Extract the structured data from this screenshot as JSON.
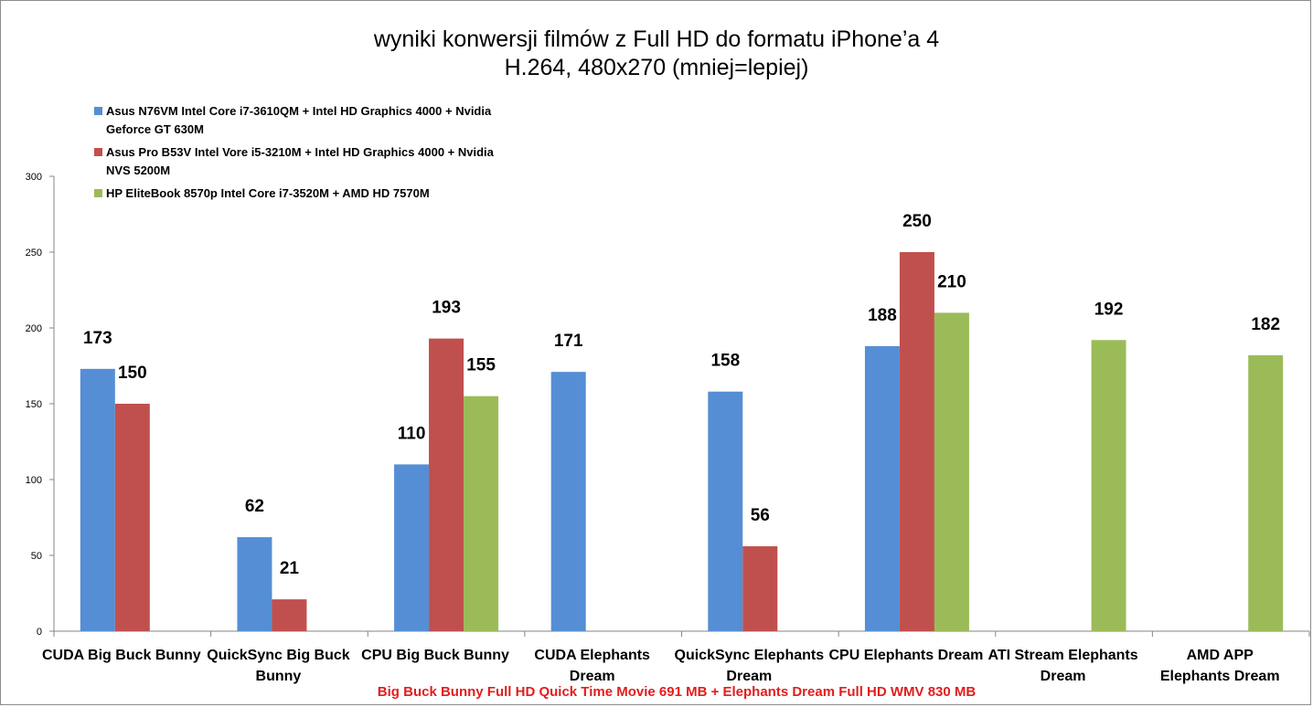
{
  "title": {
    "line1": "wyniki konwersji filmów z Full HD do formatu iPhone’a 4",
    "line2": "H.264, 480x270 (mniej=lepiej)"
  },
  "footnote": "Big Buck Bunny Full HD Quick Time Movie 691 MB + Elephants Dream Full HD WMV 830 MB",
  "colors": {
    "series1": "#558ed5",
    "series2": "#c0504d",
    "series3": "#9bbb59"
  },
  "legend": [
    {
      "name": "Asus N76VM Intel Core i7-3610QM + Intel HD Graphics 4000 + Nvidia Geforce GT 630M",
      "lines": [
        "Asus N76VM Intel Core i7-3610QM + Intel HD Graphics 4000 + Nvidia",
        "Geforce GT 630M"
      ]
    },
    {
      "name": "Asus Pro B53V Intel Vore i5-3210M + Intel HD Graphics 4000 + Nvidia NVS 5200M",
      "lines": [
        "Asus Pro B53V Intel Vore i5-3210M + Intel HD Graphics 4000 + Nvidia",
        "NVS 5200M"
      ]
    },
    {
      "name": "HP EliteBook 8570p Intel Core i7-3520M + AMD HD 7570M",
      "lines": [
        "HP EliteBook 8570p Intel Core i7-3520M + AMD HD 7570M"
      ]
    }
  ],
  "chart_data": {
    "type": "bar",
    "categories": [
      [
        "CUDA Big Buck Bunny"
      ],
      [
        "QuickSync Big Buck",
        "Bunny"
      ],
      [
        "CPU Big Buck Bunny"
      ],
      [
        "CUDA Elephants",
        "Dream"
      ],
      [
        "QuickSync Elephants",
        "Dream"
      ],
      [
        "CPU Elephants Dream"
      ],
      [
        "ATI Stream Elephants",
        "Dream"
      ],
      [
        "AMD APP",
        "Elephants Dream"
      ]
    ],
    "series": [
      {
        "name": "Asus N76VM Intel Core i7-3610QM + Intel HD Graphics 4000 + Nvidia Geforce GT 630M",
        "values": [
          173,
          62,
          110,
          171,
          158,
          188,
          null,
          null
        ]
      },
      {
        "name": "Asus Pro B53V Intel Vore i5-3210M + Intel HD Graphics 4000 + Nvidia NVS 5200M",
        "values": [
          150,
          21,
          193,
          null,
          56,
          250,
          null,
          null
        ]
      },
      {
        "name": "HP EliteBook 8570p Intel Core i7-3520M + AMD HD 7570M",
        "values": [
          null,
          null,
          155,
          null,
          null,
          210,
          192,
          182
        ]
      }
    ],
    "ylim": [
      0,
      300
    ],
    "yticks": [
      0,
      50,
      100,
      150,
      200,
      250,
      300
    ],
    "grid": false,
    "legend_position": "top-left"
  }
}
